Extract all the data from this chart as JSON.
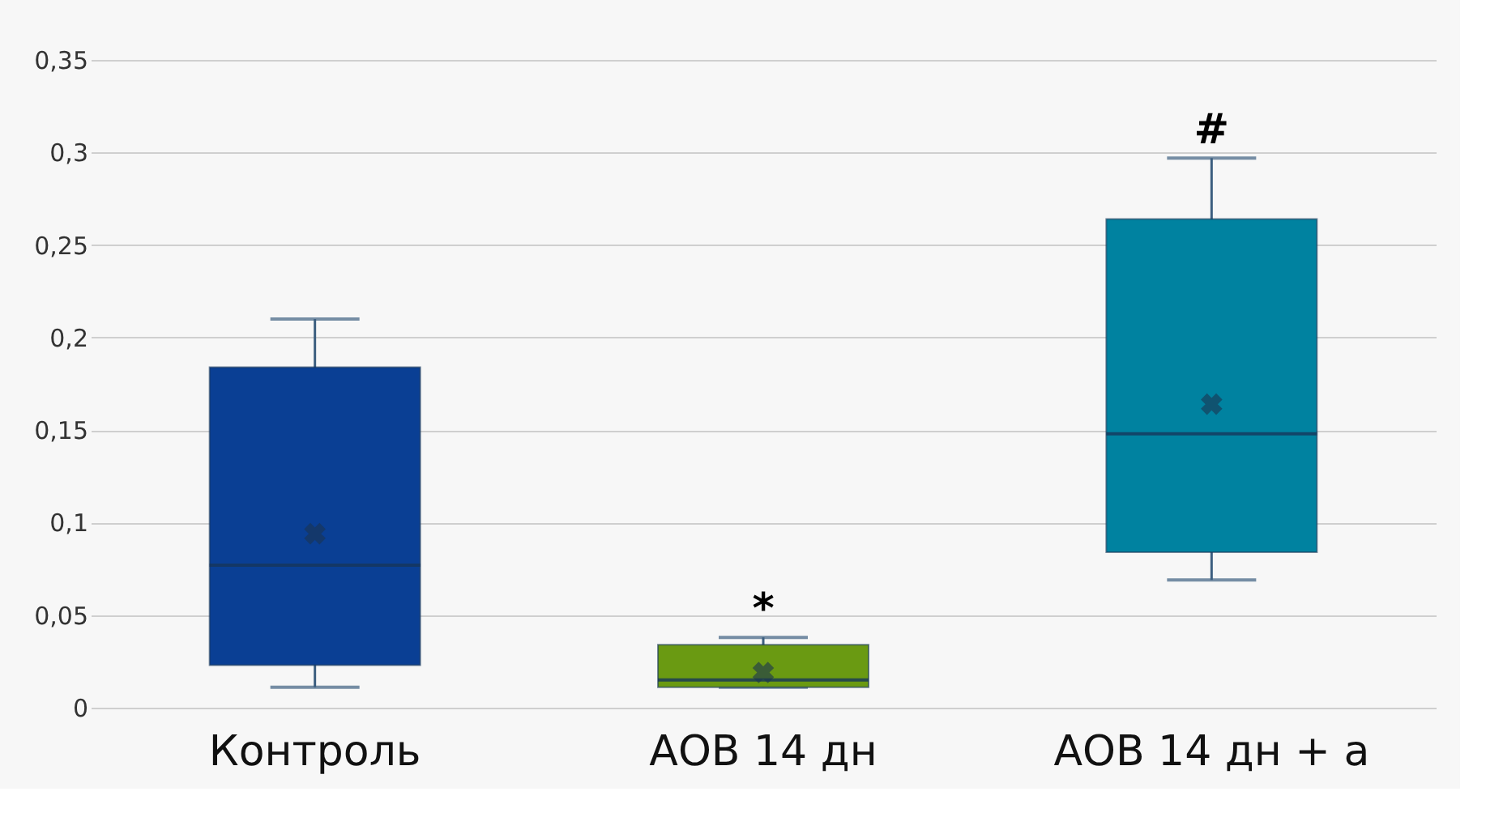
{
  "chart_data": {
    "type": "box",
    "categories": [
      "Контроль",
      "АОВ 14 дн",
      "АОВ 14 дн + а"
    ],
    "colors": [
      "#0a3f94",
      "#6a9a12",
      "#0082a0"
    ],
    "boxes": [
      {
        "low": 0.011,
        "q1": 0.023,
        "median": 0.077,
        "q3": 0.184,
        "high": 0.21,
        "mean": 0.094
      },
      {
        "low": 0.011,
        "q1": 0.011,
        "median": 0.015,
        "q3": 0.034,
        "high": 0.038,
        "mean": 0.019
      },
      {
        "low": 0.069,
        "q1": 0.084,
        "median": 0.148,
        "q3": 0.264,
        "high": 0.297,
        "mean": 0.164
      }
    ],
    "ylim": [
      0,
      0.35
    ],
    "yticks": [
      {
        "value": 0,
        "label": "0"
      },
      {
        "value": 0.05,
        "label": "0,05"
      },
      {
        "value": 0.1,
        "label": "0,1"
      },
      {
        "value": 0.15,
        "label": "0,15"
      },
      {
        "value": 0.2,
        "label": "0,2"
      },
      {
        "value": 0.25,
        "label": "0,25"
      },
      {
        "value": 0.3,
        "label": "0,3"
      },
      {
        "value": 0.35,
        "label": "0,35"
      }
    ],
    "grid": "y",
    "marker": "cross",
    "annotations": [
      {
        "text": "*",
        "x": "АОВ 14 дн",
        "y": 0.038
      },
      {
        "text": "#",
        "x": "АОВ 14 дн + а",
        "y": 0.297
      }
    ]
  }
}
